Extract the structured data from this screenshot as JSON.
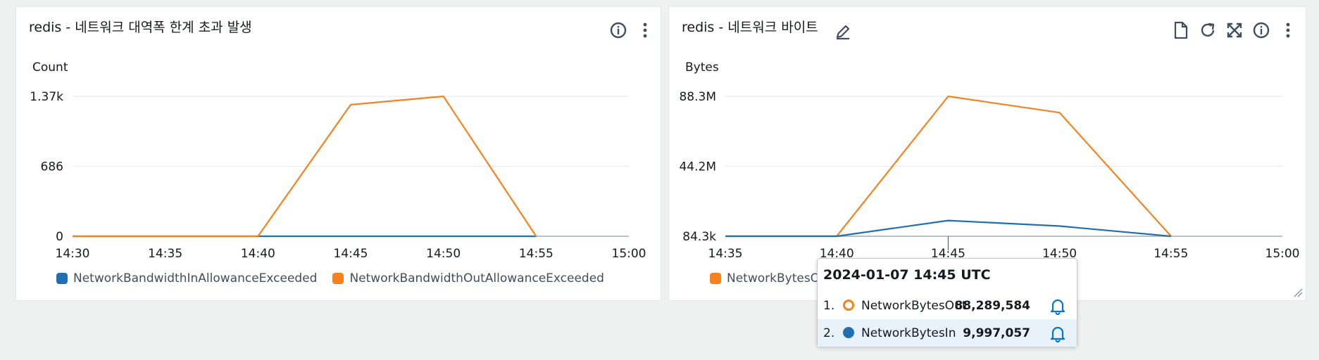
{
  "widgets": [
    {
      "title": "redis - 네트워크 대역폭 한계 초과 발생",
      "unit": "Count",
      "icons": [
        "info-icon",
        "more-options-icon"
      ]
    },
    {
      "title": "redis - 네트워크 바이트",
      "unit": "Bytes",
      "icons": [
        "edit-icon",
        "file-icon",
        "refresh-icon",
        "expand-icon",
        "info-icon",
        "more-options-icon"
      ]
    }
  ],
  "chart_data": [
    {
      "type": "line",
      "title": "redis - 네트워크 대역폭 한계 초과 발생",
      "ylabel": "Count",
      "x": [
        "14:30",
        "14:35",
        "14:40",
        "14:45",
        "14:50",
        "14:55"
      ],
      "xticks": [
        "14:30",
        "14:35",
        "14:40",
        "14:45",
        "14:50",
        "14:55",
        "15:00"
      ],
      "yticks": [
        "1.37k",
        "686",
        "0"
      ],
      "ylim": [
        0,
        1372
      ],
      "grid": true,
      "legend_position": "bottom",
      "series": [
        {
          "name": "NetworkBandwidthInAllowanceExceeded",
          "color": "#1f6fb2",
          "values": [
            0,
            0,
            0,
            0,
            0,
            0
          ]
        },
        {
          "name": "NetworkBandwidthOutAllowanceExceeded",
          "color": "#f5821f",
          "values": [
            0,
            0,
            0,
            1290,
            1372,
            0
          ]
        }
      ]
    },
    {
      "type": "line",
      "title": "redis - 네트워크 바이트",
      "ylabel": "Bytes",
      "x": [
        "14:35",
        "14:40",
        "14:45",
        "14:50",
        "14:55"
      ],
      "xticks": [
        "14:35",
        "14:40",
        "14:45",
        "14:50",
        "14:55",
        "15:00"
      ],
      "yticks": [
        "88.3M",
        "44.2M",
        "84.3k"
      ],
      "ylim": [
        84300,
        88289584
      ],
      "grid": true,
      "legend_position": "bottom",
      "series": [
        {
          "name": "NetworkBytesOut",
          "color": "#f5821f",
          "values": [
            150000,
            150000,
            88289584,
            78000000,
            150000
          ]
        },
        {
          "name": "NetworkBytesIn",
          "color": "#1f6fb2",
          "values": [
            84300,
            84300,
            9997057,
            6500000,
            84300
          ]
        }
      ]
    }
  ],
  "legend2_visible_text": "NetworkBytesO",
  "tooltip": {
    "header": "2024-01-07 14:45 UTC",
    "rows": [
      {
        "index": "1.",
        "name": "NetworkBytesOut",
        "value": "88,289,584",
        "color": "#f5821f",
        "style": "hollow"
      },
      {
        "index": "2.",
        "name": "NetworkBytesIn",
        "value": "9,997,057",
        "color": "#1f6fb2",
        "style": "filled"
      }
    ]
  }
}
